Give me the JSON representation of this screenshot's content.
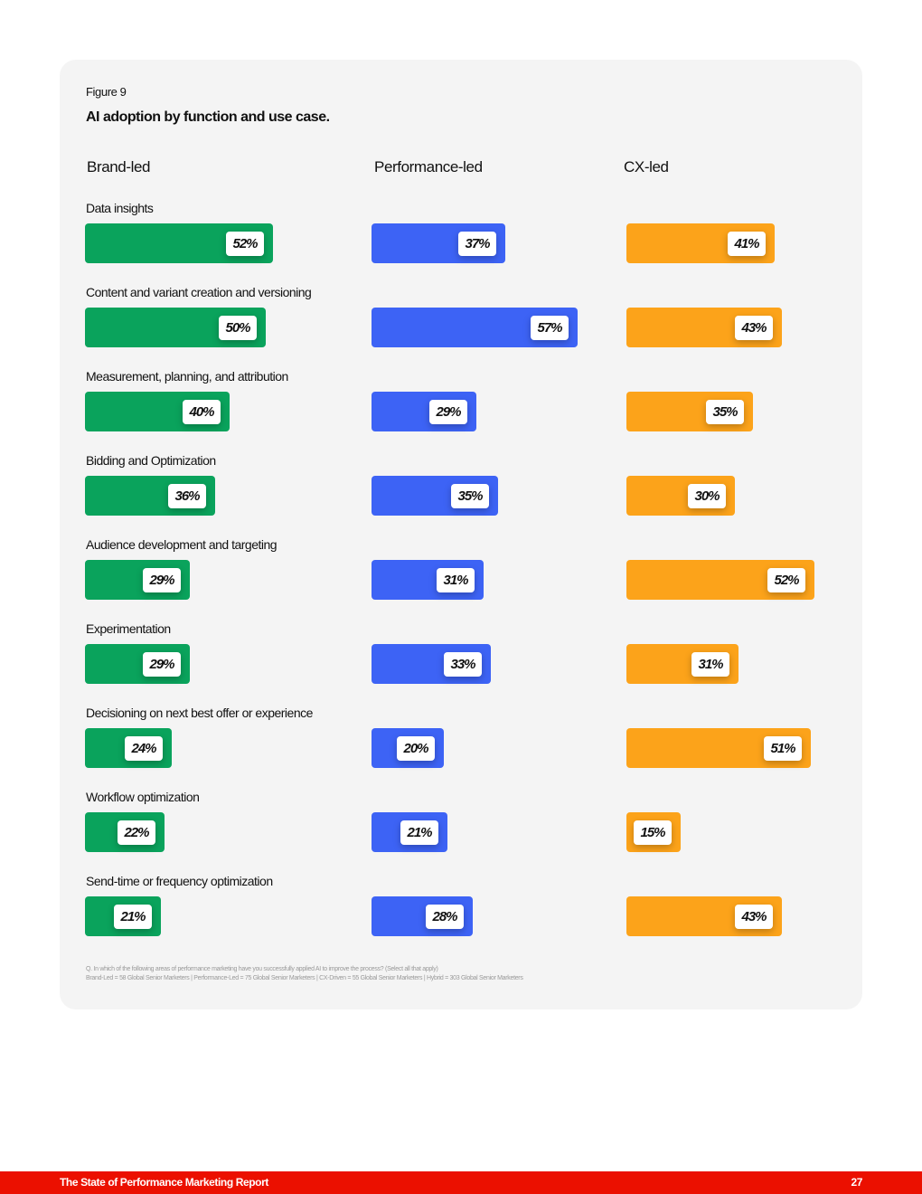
{
  "chart_data": {
    "type": "bar",
    "figure_label": "Figure 9",
    "title": "AI adoption by function and use case.",
    "categories": [
      "Data insights",
      "Content and variant creation and versioning",
      "Measurement, planning, and attribution",
      "Bidding and Optimization",
      "Audience development and targeting",
      "Experimentation",
      "Decisioning on next best offer or experience",
      "Workflow optimization",
      "Send-time or frequency optimization"
    ],
    "series": [
      {
        "name": "Brand-led",
        "color": "#0aa35c",
        "values": [
          52,
          50,
          40,
          36,
          29,
          29,
          24,
          22,
          21
        ]
      },
      {
        "name": "Performance-led",
        "color": "#3d63f5",
        "values": [
          37,
          57,
          29,
          35,
          31,
          33,
          20,
          21,
          28
        ]
      },
      {
        "name": "CX-led",
        "color": "#fca31a",
        "values": [
          41,
          43,
          35,
          30,
          52,
          31,
          51,
          15,
          43
        ]
      }
    ],
    "unit": "%"
  },
  "footnotes": [
    "Q. In which of the following areas of performance marketing have you successfully applied AI to improve the process? (Select all that apply)",
    "Brand-Led = 58 Global Senior Marketers | Performance-Led = 75 Global Senior Marketers | CX-Driven = 55 Global Senior Marketers | Hybrid = 303 Global Senior Marketers"
  ],
  "footer": {
    "title": "The State of Performance Marketing Report",
    "page": "27",
    "color": "#eb1000"
  }
}
